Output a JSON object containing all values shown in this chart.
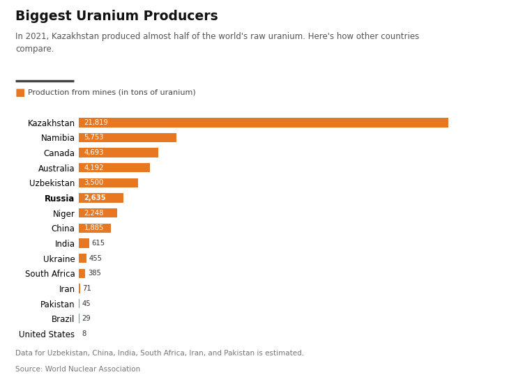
{
  "title": "Biggest Uranium Producers",
  "subtitle": "In 2021, Kazakhstan produced almost half of the world's raw uranium. Here's how other countries\ncompare.",
  "legend_label": "Production from mines (in tons of uranium)",
  "categories": [
    "Kazakhstan",
    "Namibia",
    "Canada",
    "Australia",
    "Uzbekistan",
    "Russia",
    "Niger",
    "China",
    "India",
    "Ukraine",
    "South Africa",
    "Iran",
    "Pakistan",
    "Brazil",
    "United States"
  ],
  "values": [
    21819,
    5753,
    4693,
    4192,
    3500,
    2635,
    2248,
    1885,
    615,
    455,
    385,
    71,
    45,
    29,
    8
  ],
  "labels": [
    "21,819",
    "5,753",
    "4,693",
    "4,192",
    "3,500",
    "2,635",
    "2,248",
    "1,885",
    "615",
    "455",
    "385",
    "71",
    "45",
    "29",
    "8"
  ],
  "bold_indices": [
    5
  ],
  "bar_color": "#E87722",
  "background_color": "#ffffff",
  "footnote": "Data for Uzbekistan, China, India, South Africa, Iran, and Pakistan is estimated.",
  "source": "Source: World Nuclear Association",
  "inside_label_threshold": 1000,
  "xlim": 24500
}
